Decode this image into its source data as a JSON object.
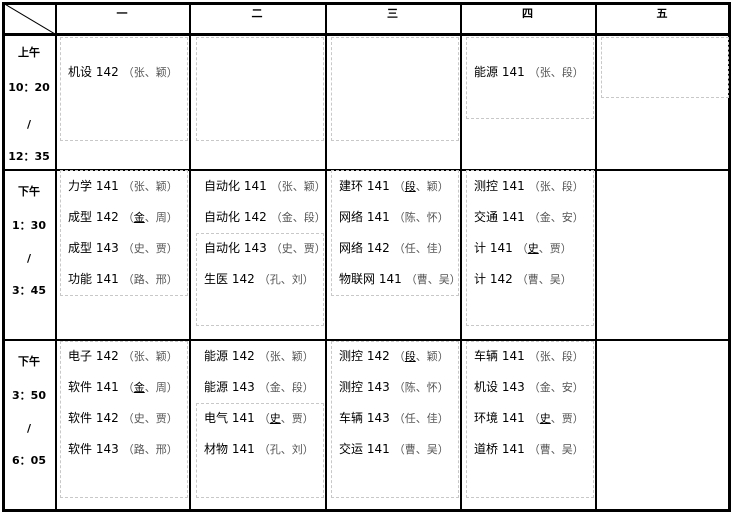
{
  "headers": [
    "一",
    "二",
    "三",
    "四",
    "五"
  ],
  "times": [
    [
      "上午",
      "10：20",
      "/",
      "12：35"
    ],
    [
      "下午",
      "1：30",
      "/",
      "3：45"
    ],
    [
      "下午",
      "3：50",
      "/",
      "6：05"
    ]
  ],
  "rows": [
    [
      [
        {
          "c": "机设 142",
          "a": "张",
          "b": "颖",
          "u": false
        }
      ],
      [],
      [],
      [
        {
          "c": "能源 141",
          "a": "张",
          "b": "段",
          "u": false
        }
      ],
      []
    ],
    [
      [
        {
          "c": "力学 141",
          "a": "张",
          "b": "颖",
          "u": false
        },
        {
          "c": "成型 142",
          "a": "金",
          "b": "周",
          "u": true
        },
        {
          "c": "成型 143",
          "a": "史",
          "b": "贾",
          "u": false
        },
        {
          "c": "功能 141",
          "a": "路",
          "b": "邢",
          "u": false
        }
      ],
      [
        {
          "c": "自动化 141",
          "a": "张",
          "b": "颖",
          "u": false
        },
        {
          "c": "自动化 142",
          "a": "金",
          "b": "段",
          "u": false
        },
        {
          "c": "自动化 143",
          "a": "史",
          "b": "贾",
          "u": false
        },
        {
          "c": "生医 142",
          "a": "孔",
          "b": "刘",
          "u": false
        }
      ],
      [
        {
          "c": "建环 141",
          "a": "段",
          "b": "颖",
          "u": true
        },
        {
          "c": "网络 141",
          "a": "陈",
          "b": "怀",
          "u": false
        },
        {
          "c": "网络 142",
          "a": "任",
          "b": "佳",
          "u": false
        },
        {
          "c": "物联网 141",
          "a": "曹",
          "b": "吴",
          "u": false
        }
      ],
      [
        {
          "c": "测控 141",
          "a": "张",
          "b": "段",
          "u": false
        },
        {
          "c": "交通 141",
          "a": "金",
          "b": "安",
          "u": false
        },
        {
          "c": "计 141",
          "a": "史",
          "b": "贾",
          "u": true
        },
        {
          "c": "计 142",
          "a": "曹",
          "b": "吴",
          "u": false
        }
      ],
      []
    ],
    [
      [
        {
          "c": "电子 142",
          "a": "张",
          "b": "颖",
          "u": false
        },
        {
          "c": "软件 141",
          "a": "金",
          "b": "周",
          "u": true
        },
        {
          "c": "软件 142",
          "a": "史",
          "b": "贾",
          "u": false
        },
        {
          "c": "软件 143",
          "a": "路",
          "b": "邢",
          "u": false
        }
      ],
      [
        {
          "c": "能源 142",
          "a": "张",
          "b": "颖",
          "u": false
        },
        {
          "c": "能源 143",
          "a": "金",
          "b": "段",
          "u": false
        },
        {
          "c": "电气 141",
          "a": "史",
          "b": "贾",
          "u": true
        },
        {
          "c": "材物 141",
          "a": "孔",
          "b": "刘",
          "u": false
        }
      ],
      [
        {
          "c": "测控 142",
          "a": "段",
          "b": "颖",
          "u": true
        },
        {
          "c": "测控 143",
          "a": "陈",
          "b": "怀",
          "u": false
        },
        {
          "c": "车辆 143",
          "a": "任",
          "b": "佳",
          "u": false
        },
        {
          "c": "交运 141",
          "a": "曹",
          "b": "吴",
          "u": false
        }
      ],
      [
        {
          "c": "车辆 141",
          "a": "张",
          "b": "段",
          "u": false
        },
        {
          "c": "机设 143",
          "a": "金",
          "b": "安",
          "u": false
        },
        {
          "c": "环境 141",
          "a": "史",
          "b": "贾",
          "u": true
        },
        {
          "c": "道桥 141",
          "a": "曹",
          "b": "吴",
          "u": false
        }
      ],
      []
    ]
  ]
}
